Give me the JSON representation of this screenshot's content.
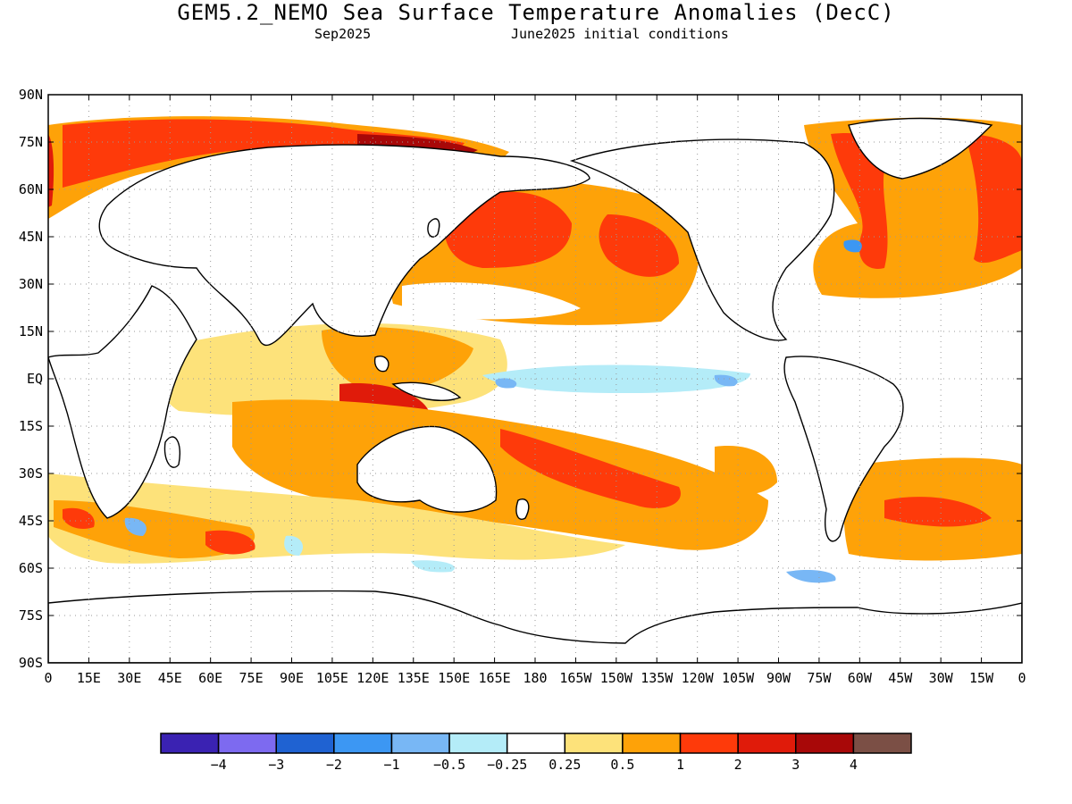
{
  "title": "GEM5.2_NEMO Sea Surface Temperature Anomalies (DecC)",
  "subtitle_left": "Sep2025",
  "subtitle_right": "June2025 initial conditions",
  "lat_labels": [
    "90N",
    "75N",
    "60N",
    "45N",
    "30N",
    "15N",
    "EQ",
    "15S",
    "30S",
    "45S",
    "60S",
    "75S",
    "90S"
  ],
  "lon_labels": [
    "0",
    "15E",
    "30E",
    "45E",
    "60E",
    "75E",
    "90E",
    "105E",
    "120E",
    "135E",
    "150E",
    "165E",
    "180",
    "165W",
    "150W",
    "135W",
    "120W",
    "105W",
    "90W",
    "75W",
    "60W",
    "45W",
    "30W",
    "15W",
    "0"
  ],
  "colorbar": {
    "colors": [
      "#3a22b2",
      "#7d6af0",
      "#1f62d2",
      "#3c97f3",
      "#78b7f5",
      "#b4ecf8",
      "#ffffff",
      "#fde27a",
      "#fea208",
      "#fe3a0a",
      "#e01b0a",
      "#a80808",
      "#7b4f45"
    ],
    "labels": [
      "−4",
      "−3",
      "−2",
      "−1",
      "−0.5",
      "−0.25",
      "0.25",
      "0.5",
      "1",
      "2",
      "3",
      "4"
    ]
  },
  "legend_bins": [
    "< -4",
    "-4 to -3",
    "-3 to -2",
    "-2 to -1",
    "-1 to -0.5",
    "-0.5 to -0.25",
    "-0.25 to 0.25",
    "0.25 to 0.5",
    "0.5 to 1",
    "1 to 2",
    "2 to 3",
    "3 to 4",
    "> 4"
  ]
}
